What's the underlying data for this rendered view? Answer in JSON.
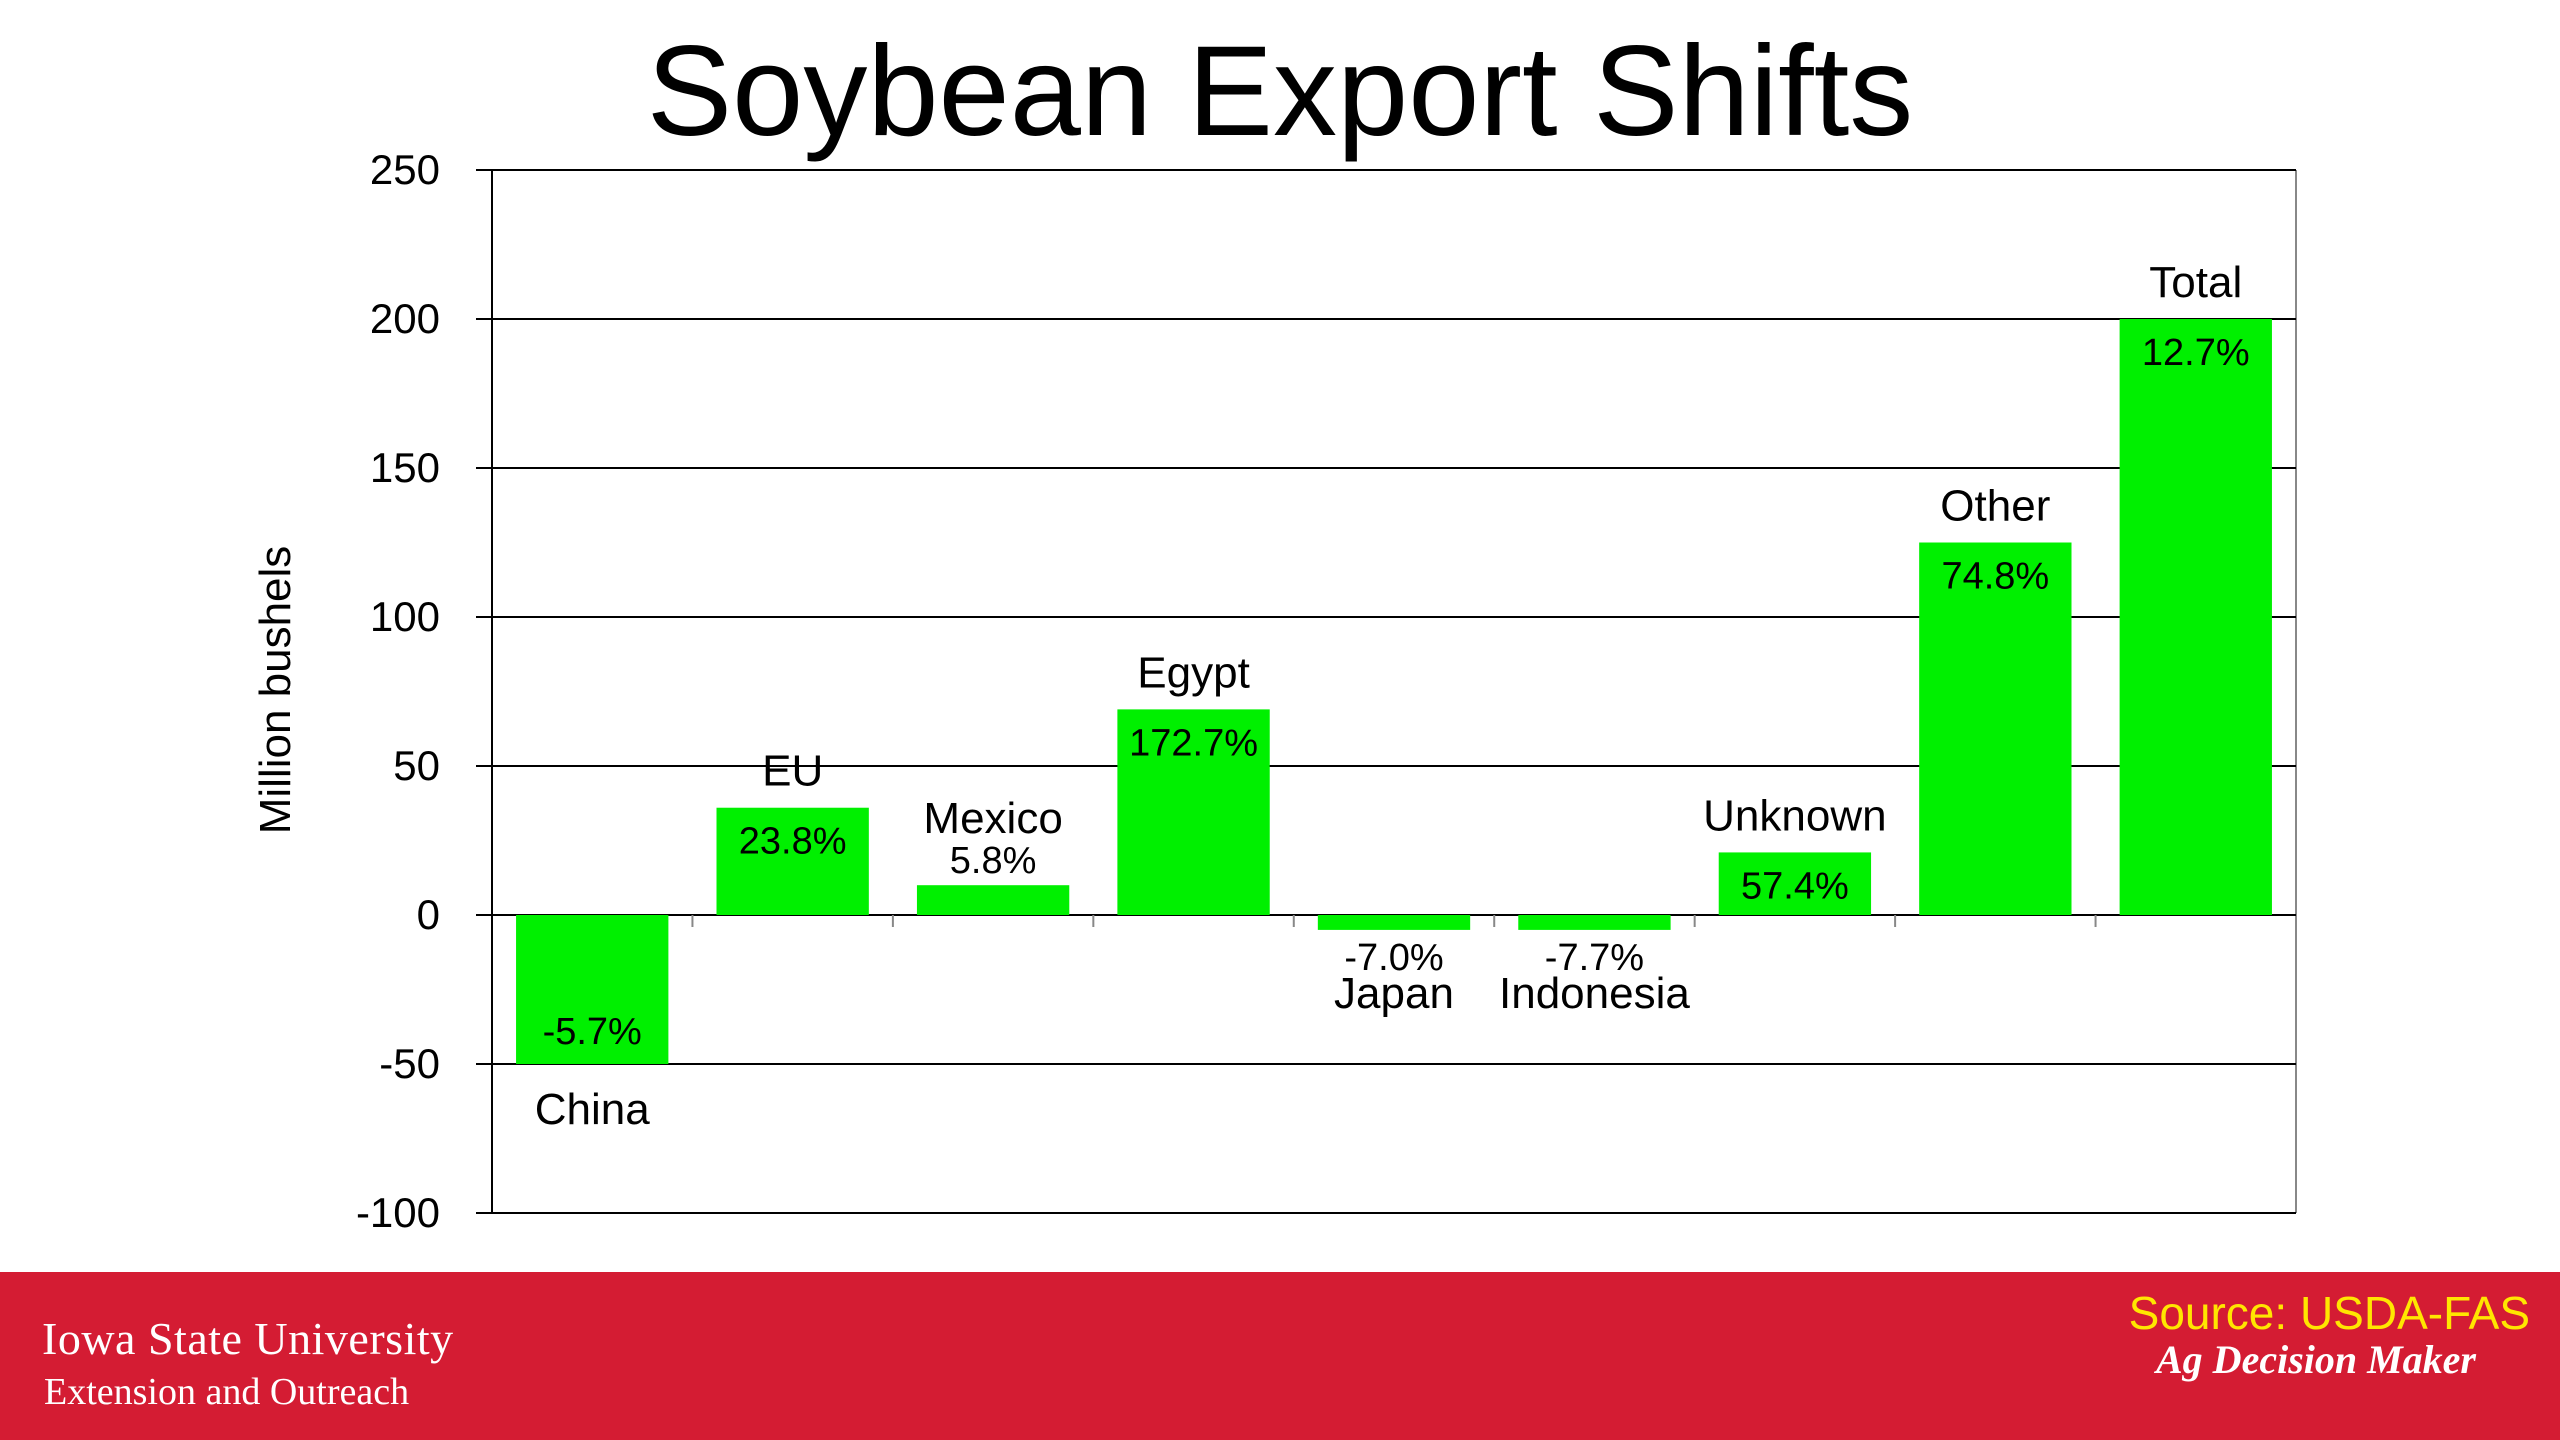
{
  "colors": {
    "bar": "#00f000",
    "footer": "#d41c33",
    "source_text": "#ffe600"
  },
  "chart_data": {
    "type": "bar",
    "title": "Soybean Export Shifts",
    "ylabel": "Million bushels",
    "xlabel": "",
    "ylim": [
      -100,
      250
    ],
    "yticks": [
      250,
      200,
      150,
      100,
      50,
      0,
      -50,
      -100
    ],
    "grid": true,
    "categories": [
      "China",
      "EU",
      "Mexico",
      "Egypt",
      "Japan",
      "Indonesia",
      "Unknown",
      "Other",
      "Total"
    ],
    "values": [
      -50,
      36,
      10,
      69,
      -5,
      -5,
      21,
      125,
      200
    ],
    "data_labels": [
      "-5.7%",
      "23.8%",
      "5.8%",
      "172.7%",
      "-7.0%",
      "-7.7%",
      "57.4%",
      "74.8%",
      "12.7%"
    ]
  },
  "footer": {
    "university": "Iowa State University",
    "unit": "Extension and Outreach",
    "source": "Source: USDA-FAS",
    "brand": "Ag Decision Maker"
  }
}
